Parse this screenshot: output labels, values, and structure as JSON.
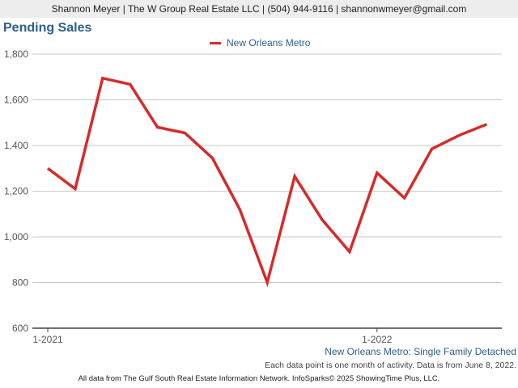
{
  "header": {
    "contact": "Shannon Meyer | The W Group Real Estate LLC | (504) 944-9116 | shannonwmeyer@gmail.com"
  },
  "chart_title": "Pending Sales",
  "legend": {
    "series_name": "New Orleans Metro",
    "color": "#d62b2b"
  },
  "subtitle": "New Orleans Metro: Single Family Detached",
  "note": "Each data point is one month of activity. Data is from June 8, 2022.",
  "footer": "All data from The Gulf South Real Estate Information Network. InfoSparks© 2025 ShowingTime Plus, LLC.",
  "chart_data": {
    "type": "line",
    "x": [
      "1-2021",
      "2-2021",
      "3-2021",
      "4-2021",
      "5-2021",
      "6-2021",
      "7-2021",
      "8-2021",
      "9-2021",
      "10-2021",
      "11-2021",
      "12-2021",
      "1-2022",
      "2-2022",
      "3-2022",
      "4-2022",
      "5-2022"
    ],
    "x_tick_labels": [
      "1-2021",
      "1-2022"
    ],
    "y_ticks": [
      "600",
      "800",
      "1,000",
      "1,200",
      "1,400",
      "1,600",
      "1,800"
    ],
    "ylim": [
      600,
      1800
    ],
    "grid": true,
    "series": [
      {
        "name": "New Orleans Metro",
        "color": "#d62b2b",
        "values": [
          1300,
          1210,
          1695,
          1668,
          1480,
          1455,
          1345,
          1120,
          800,
          1265,
          1075,
          935,
          1280,
          1170,
          1385,
          1445,
          1493
        ]
      }
    ]
  }
}
